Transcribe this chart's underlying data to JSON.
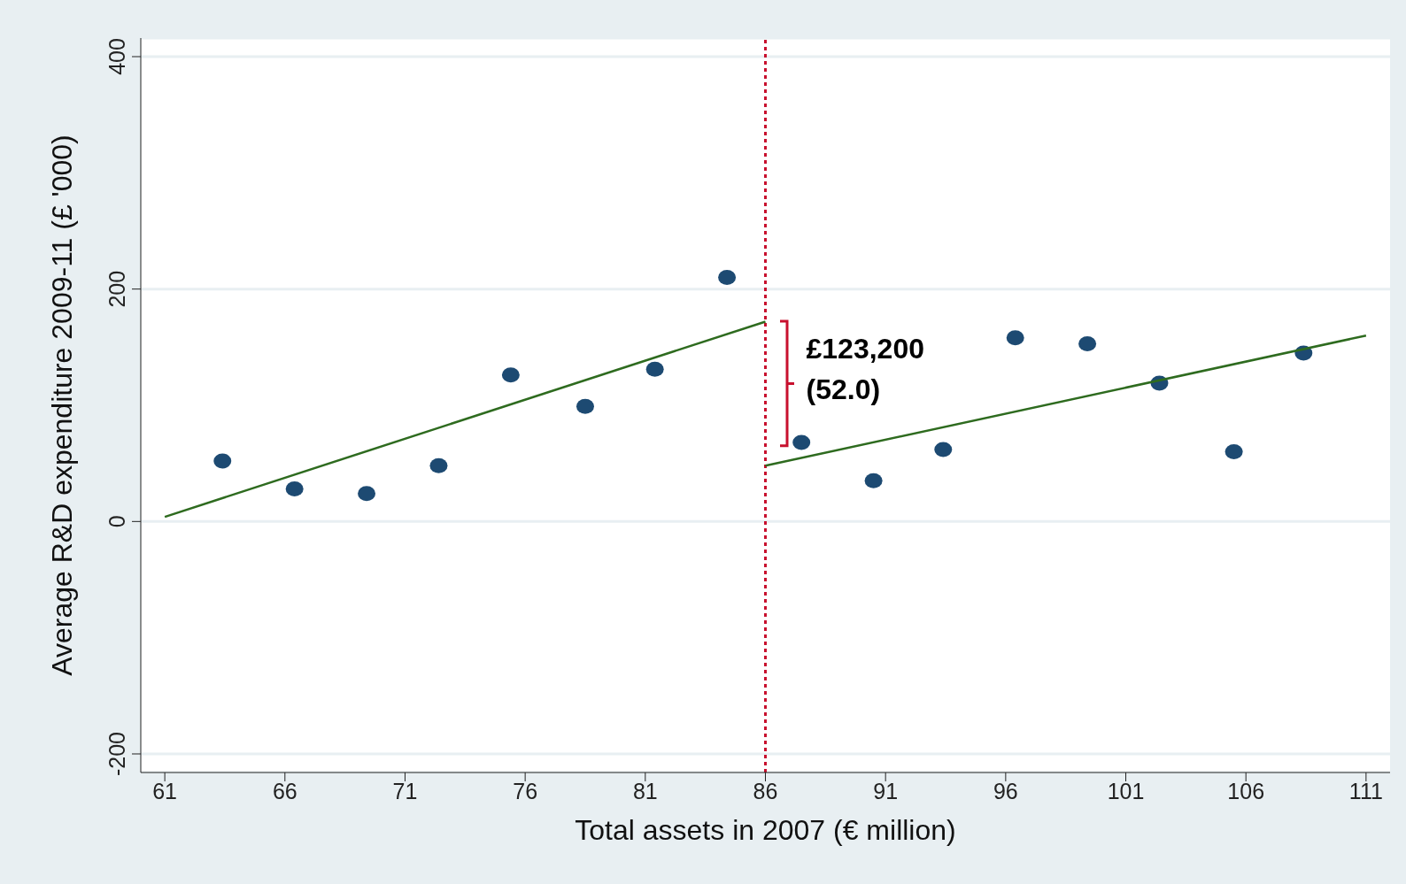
{
  "chart_data": {
    "type": "scatter",
    "xlabel": "Total assets in 2007 (€ million)",
    "ylabel": "Average R&D expenditure 2009-11 (£ '000)",
    "xlim": [
      60,
      112
    ],
    "xticks": [
      61,
      66,
      71,
      76,
      81,
      86,
      91,
      96,
      101,
      106,
      111
    ],
    "ylim": [
      -216,
      416
    ],
    "yticks": [
      -200,
      0,
      200,
      400
    ],
    "grid": "y",
    "series": [
      {
        "marker": "circle",
        "color": "#1d4a72",
        "x": [
          63.4,
          66.4,
          69.4,
          72.4,
          75.4,
          78.5,
          81.4,
          84.4,
          87.5,
          90.5,
          93.4,
          96.4,
          99.4,
          102.4,
          105.5,
          108.4
        ],
        "values": [
          52,
          28,
          24,
          48,
          126,
          99,
          131,
          210,
          68,
          35,
          62,
          158,
          153,
          119,
          60,
          145
        ]
      },
      {
        "type": "line",
        "color": "#2e6b1f",
        "x": [
          61,
          86
        ],
        "values": [
          4,
          172
        ]
      },
      {
        "type": "line",
        "color": "#2e6b1f",
        "x": [
          86,
          111
        ],
        "values": [
          48,
          160
        ]
      }
    ],
    "ref_lines": [
      {
        "axis": "x",
        "value": 86,
        "color": "#c8102e",
        "line_style": "dotted"
      }
    ],
    "annotations": [
      "£123,200",
      "(52.0)"
    ]
  }
}
